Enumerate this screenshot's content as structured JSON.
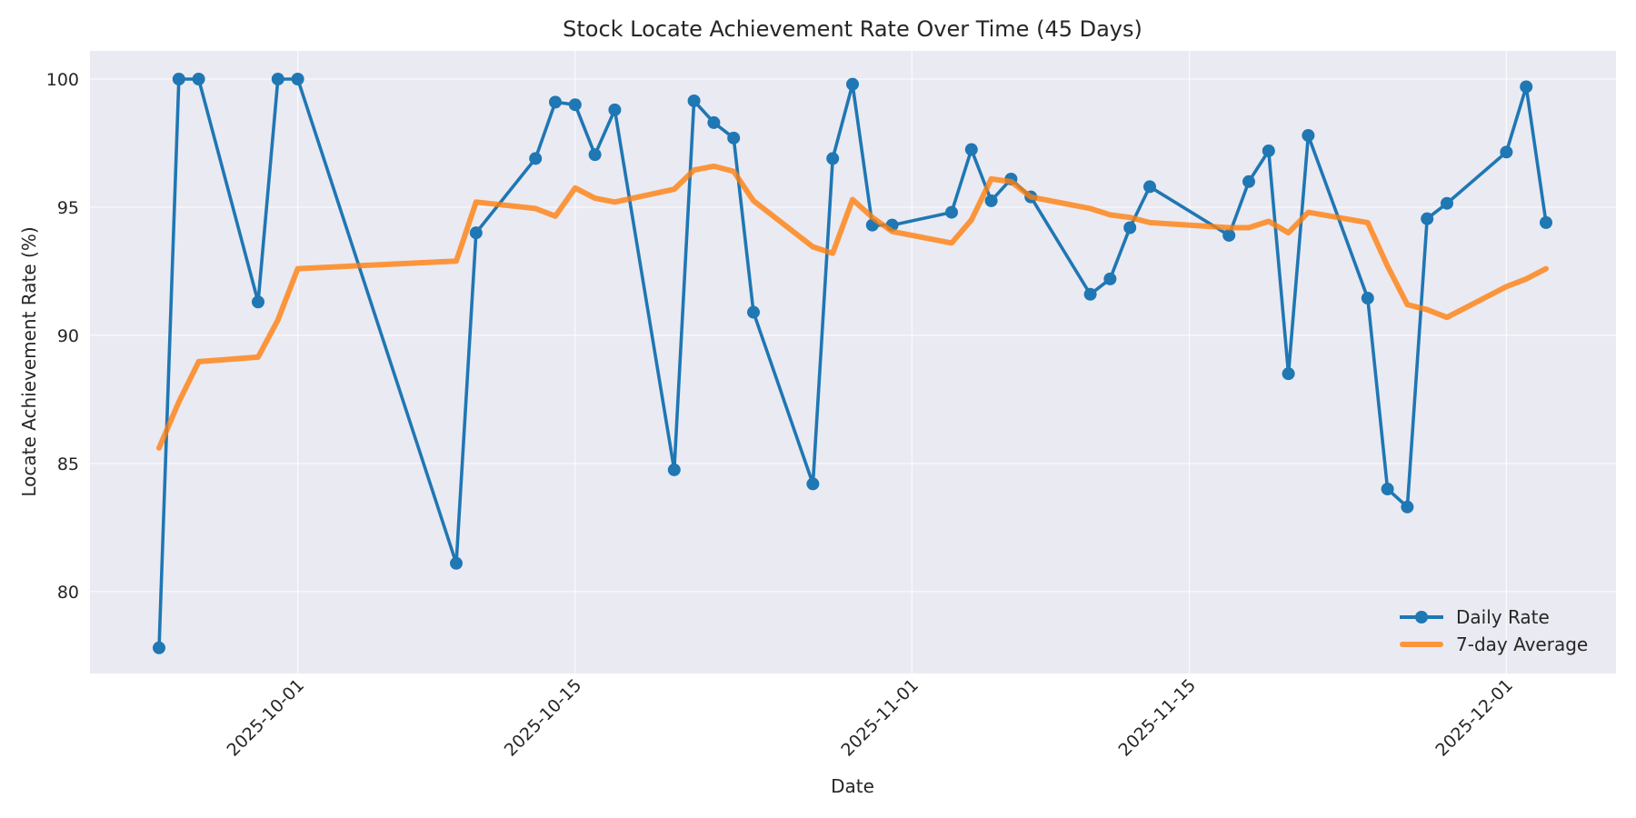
{
  "chart_data": {
    "type": "line",
    "title": "Stock Locate Achievement Rate Over Time (45 Days)",
    "xlabel": "Date",
    "ylabel": "Locate Achievement Rate (%)",
    "ylim": [
      76.8,
      101.1
    ],
    "yticks": [
      80,
      85,
      90,
      95,
      100
    ],
    "xticks": [
      "2025-10-01",
      "2025-10-15",
      "2025-11-01",
      "2025-11-15",
      "2025-12-01"
    ],
    "grid": true,
    "legend_position": "lower right",
    "x": [
      "2025-09-24",
      "2025-09-25",
      "2025-09-26",
      "2025-09-29",
      "2025-09-30",
      "2025-10-01",
      "2025-10-09",
      "2025-10-10",
      "2025-10-13",
      "2025-10-14",
      "2025-10-15",
      "2025-10-16",
      "2025-10-17",
      "2025-10-20",
      "2025-10-21",
      "2025-10-22",
      "2025-10-23",
      "2025-10-24",
      "2025-10-27",
      "2025-10-28",
      "2025-10-29",
      "2025-10-30",
      "2025-10-31",
      "2025-11-03",
      "2025-11-04",
      "2025-11-05",
      "2025-11-06",
      "2025-11-07",
      "2025-11-10",
      "2025-11-11",
      "2025-11-12",
      "2025-11-13",
      "2025-11-17",
      "2025-11-18",
      "2025-11-19",
      "2025-11-20",
      "2025-11-21",
      "2025-11-24",
      "2025-11-25",
      "2025-11-26",
      "2025-11-27",
      "2025-11-28",
      "2025-12-01",
      "2025-12-02",
      "2025-12-03"
    ],
    "series": [
      {
        "name": "Daily Rate",
        "color": "#1f77b4",
        "marker": "circle",
        "values": [
          77.8,
          100.0,
          100.0,
          91.3,
          100.0,
          100.0,
          81.1,
          94.0,
          96.9,
          99.1,
          99.0,
          97.05,
          98.8,
          84.75,
          99.15,
          98.3,
          97.7,
          90.9,
          84.2,
          96.9,
          99.8,
          94.3,
          94.3,
          94.8,
          97.25,
          95.25,
          96.1,
          95.4,
          91.6,
          92.2,
          94.2,
          95.8,
          93.9,
          96.0,
          97.2,
          88.5,
          97.8,
          91.45,
          84.0,
          83.3,
          94.55,
          95.15,
          97.15,
          99.7,
          94.4
        ]
      },
      {
        "name": "7-day Average",
        "color": "#ff7f0e",
        "marker": "none",
        "values": [
          85.6,
          87.4,
          88.97,
          89.15,
          90.6,
          92.6,
          92.9,
          95.2,
          94.95,
          94.65,
          95.75,
          95.35,
          95.2,
          95.7,
          96.45,
          96.6,
          96.4,
          95.25,
          93.45,
          93.2,
          95.3,
          94.6,
          94.05,
          93.6,
          94.5,
          96.1,
          96.0,
          95.4,
          94.95,
          94.7,
          94.6,
          94.4,
          94.2,
          94.2,
          94.45,
          94.0,
          94.8,
          94.4,
          92.7,
          91.2,
          91.0,
          90.7,
          91.9,
          92.2,
          92.6
        ]
      }
    ]
  },
  "legend": {
    "daily_label": "Daily Rate",
    "avg_label": "7-day Average"
  },
  "colors": {
    "plot_bg": "#eaeaf2",
    "grid": "#ffffff",
    "daily": "#1f77b4",
    "avg": "#ff7f0e"
  }
}
